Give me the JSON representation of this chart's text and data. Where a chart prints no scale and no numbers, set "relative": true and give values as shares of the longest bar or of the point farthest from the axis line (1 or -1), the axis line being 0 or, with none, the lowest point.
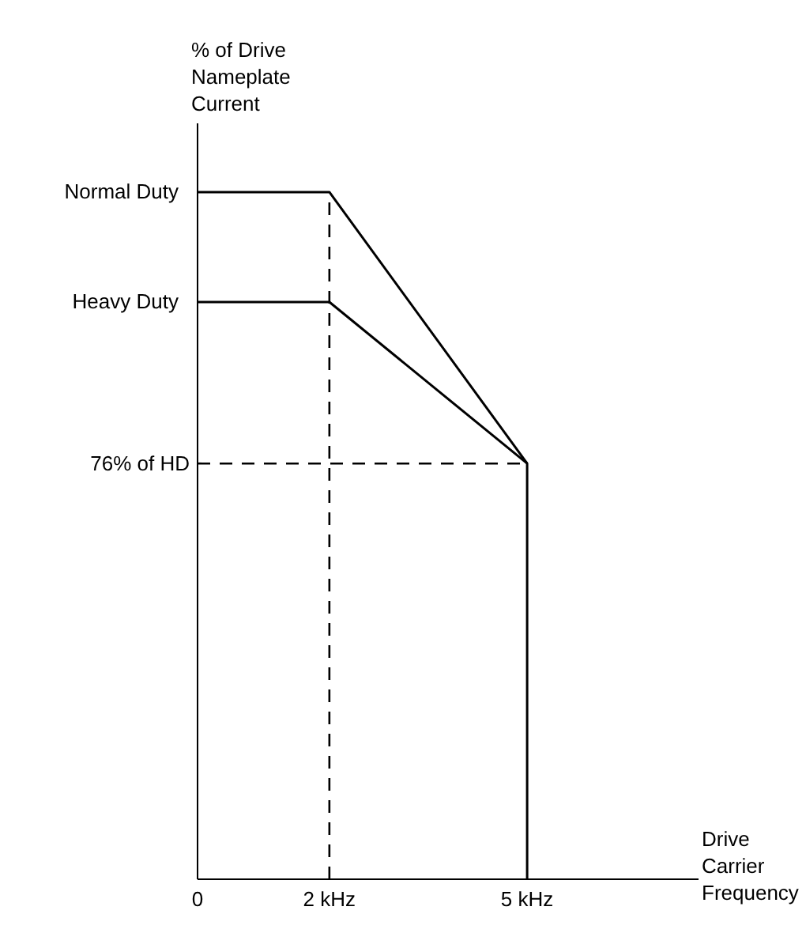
{
  "chart_data": {
    "type": "line",
    "relative": true,
    "ylabel": "% of Drive Nameplate Current",
    "xlabel": "Drive Carrier Frequency",
    "xlim": [
      0,
      7.6
    ],
    "xticks": [
      0,
      {
        "value": 2,
        "label": "2 kHz"
      },
      {
        "value": 5,
        "label": "5 kHz"
      }
    ],
    "series": [
      {
        "name": "Normal Duty",
        "color": "#000000",
        "x": [
          0,
          2,
          5,
          5
        ],
        "values": [
          1,
          1,
          0.605,
          0
        ]
      },
      {
        "name": "Heavy Duty",
        "color": "#000000",
        "x": [
          0,
          2,
          5
        ],
        "values": [
          0.84,
          0.84,
          0.605
        ]
      }
    ],
    "ref_lines": [
      {
        "axis": "y",
        "value": 0.605,
        "label": "76% of HD",
        "line_style": "dashed",
        "color": "#000000"
      },
      {
        "axis": "x",
        "value": 2,
        "line_style": "dashed",
        "color": "#000000"
      }
    ],
    "grid": false,
    "legend": false,
    "marker": "none",
    "line_style": "solid"
  }
}
